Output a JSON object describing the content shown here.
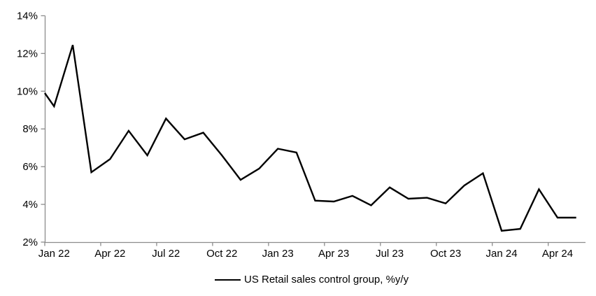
{
  "chart_data": {
    "type": "line",
    "title": "",
    "legend": "US Retail sales control group, %y/y",
    "series_name": "US Retail sales control group, %y/y",
    "categories": [
      "Jan 22",
      "Feb 22",
      "Mar 22",
      "Apr 22",
      "May 22",
      "Jun 22",
      "Jul 22",
      "Aug 22",
      "Sep 22",
      "Oct 22",
      "Nov 22",
      "Dec 22",
      "Jan 23",
      "Feb 23",
      "Mar 23",
      "Apr 23",
      "May 23",
      "Jun 23",
      "Jul 23",
      "Aug 23",
      "Sep 23",
      "Oct 23",
      "Nov 23",
      "Dec 23",
      "Jan 24",
      "Feb 24",
      "Mar 24",
      "Apr 24",
      "May 24"
    ],
    "values": [
      9.2,
      12.45,
      5.7,
      6.4,
      7.9,
      6.6,
      8.55,
      7.45,
      7.8,
      6.6,
      5.3,
      5.9,
      6.95,
      6.75,
      4.2,
      4.15,
      4.45,
      3.95,
      4.9,
      4.3,
      4.35,
      4.05,
      5.0,
      5.65,
      2.6,
      2.7,
      4.8,
      3.3,
      3.3
    ],
    "edge_entry_value": 9.9,
    "x_tick_labels": [
      "Jan 22",
      "Apr 22",
      "Jul 22",
      "Oct 22",
      "Jan 23",
      "Apr 23",
      "Jul 23",
      "Oct 23",
      "Jan 24",
      "Apr 24"
    ],
    "x_label_every_n_months": 3,
    "y_tick_labels": [
      "2%",
      "4%",
      "6%",
      "8%",
      "10%",
      "12%",
      "14%"
    ],
    "y_tick_values": [
      2,
      4,
      6,
      8,
      10,
      12,
      14
    ],
    "ylim": [
      2,
      14
    ],
    "grid": "off",
    "legend_position": "bottom-center",
    "line_color": "#000000",
    "axis_color": "#8c8c8c",
    "text_color": "#000000",
    "background_color": "#ffffff"
  }
}
